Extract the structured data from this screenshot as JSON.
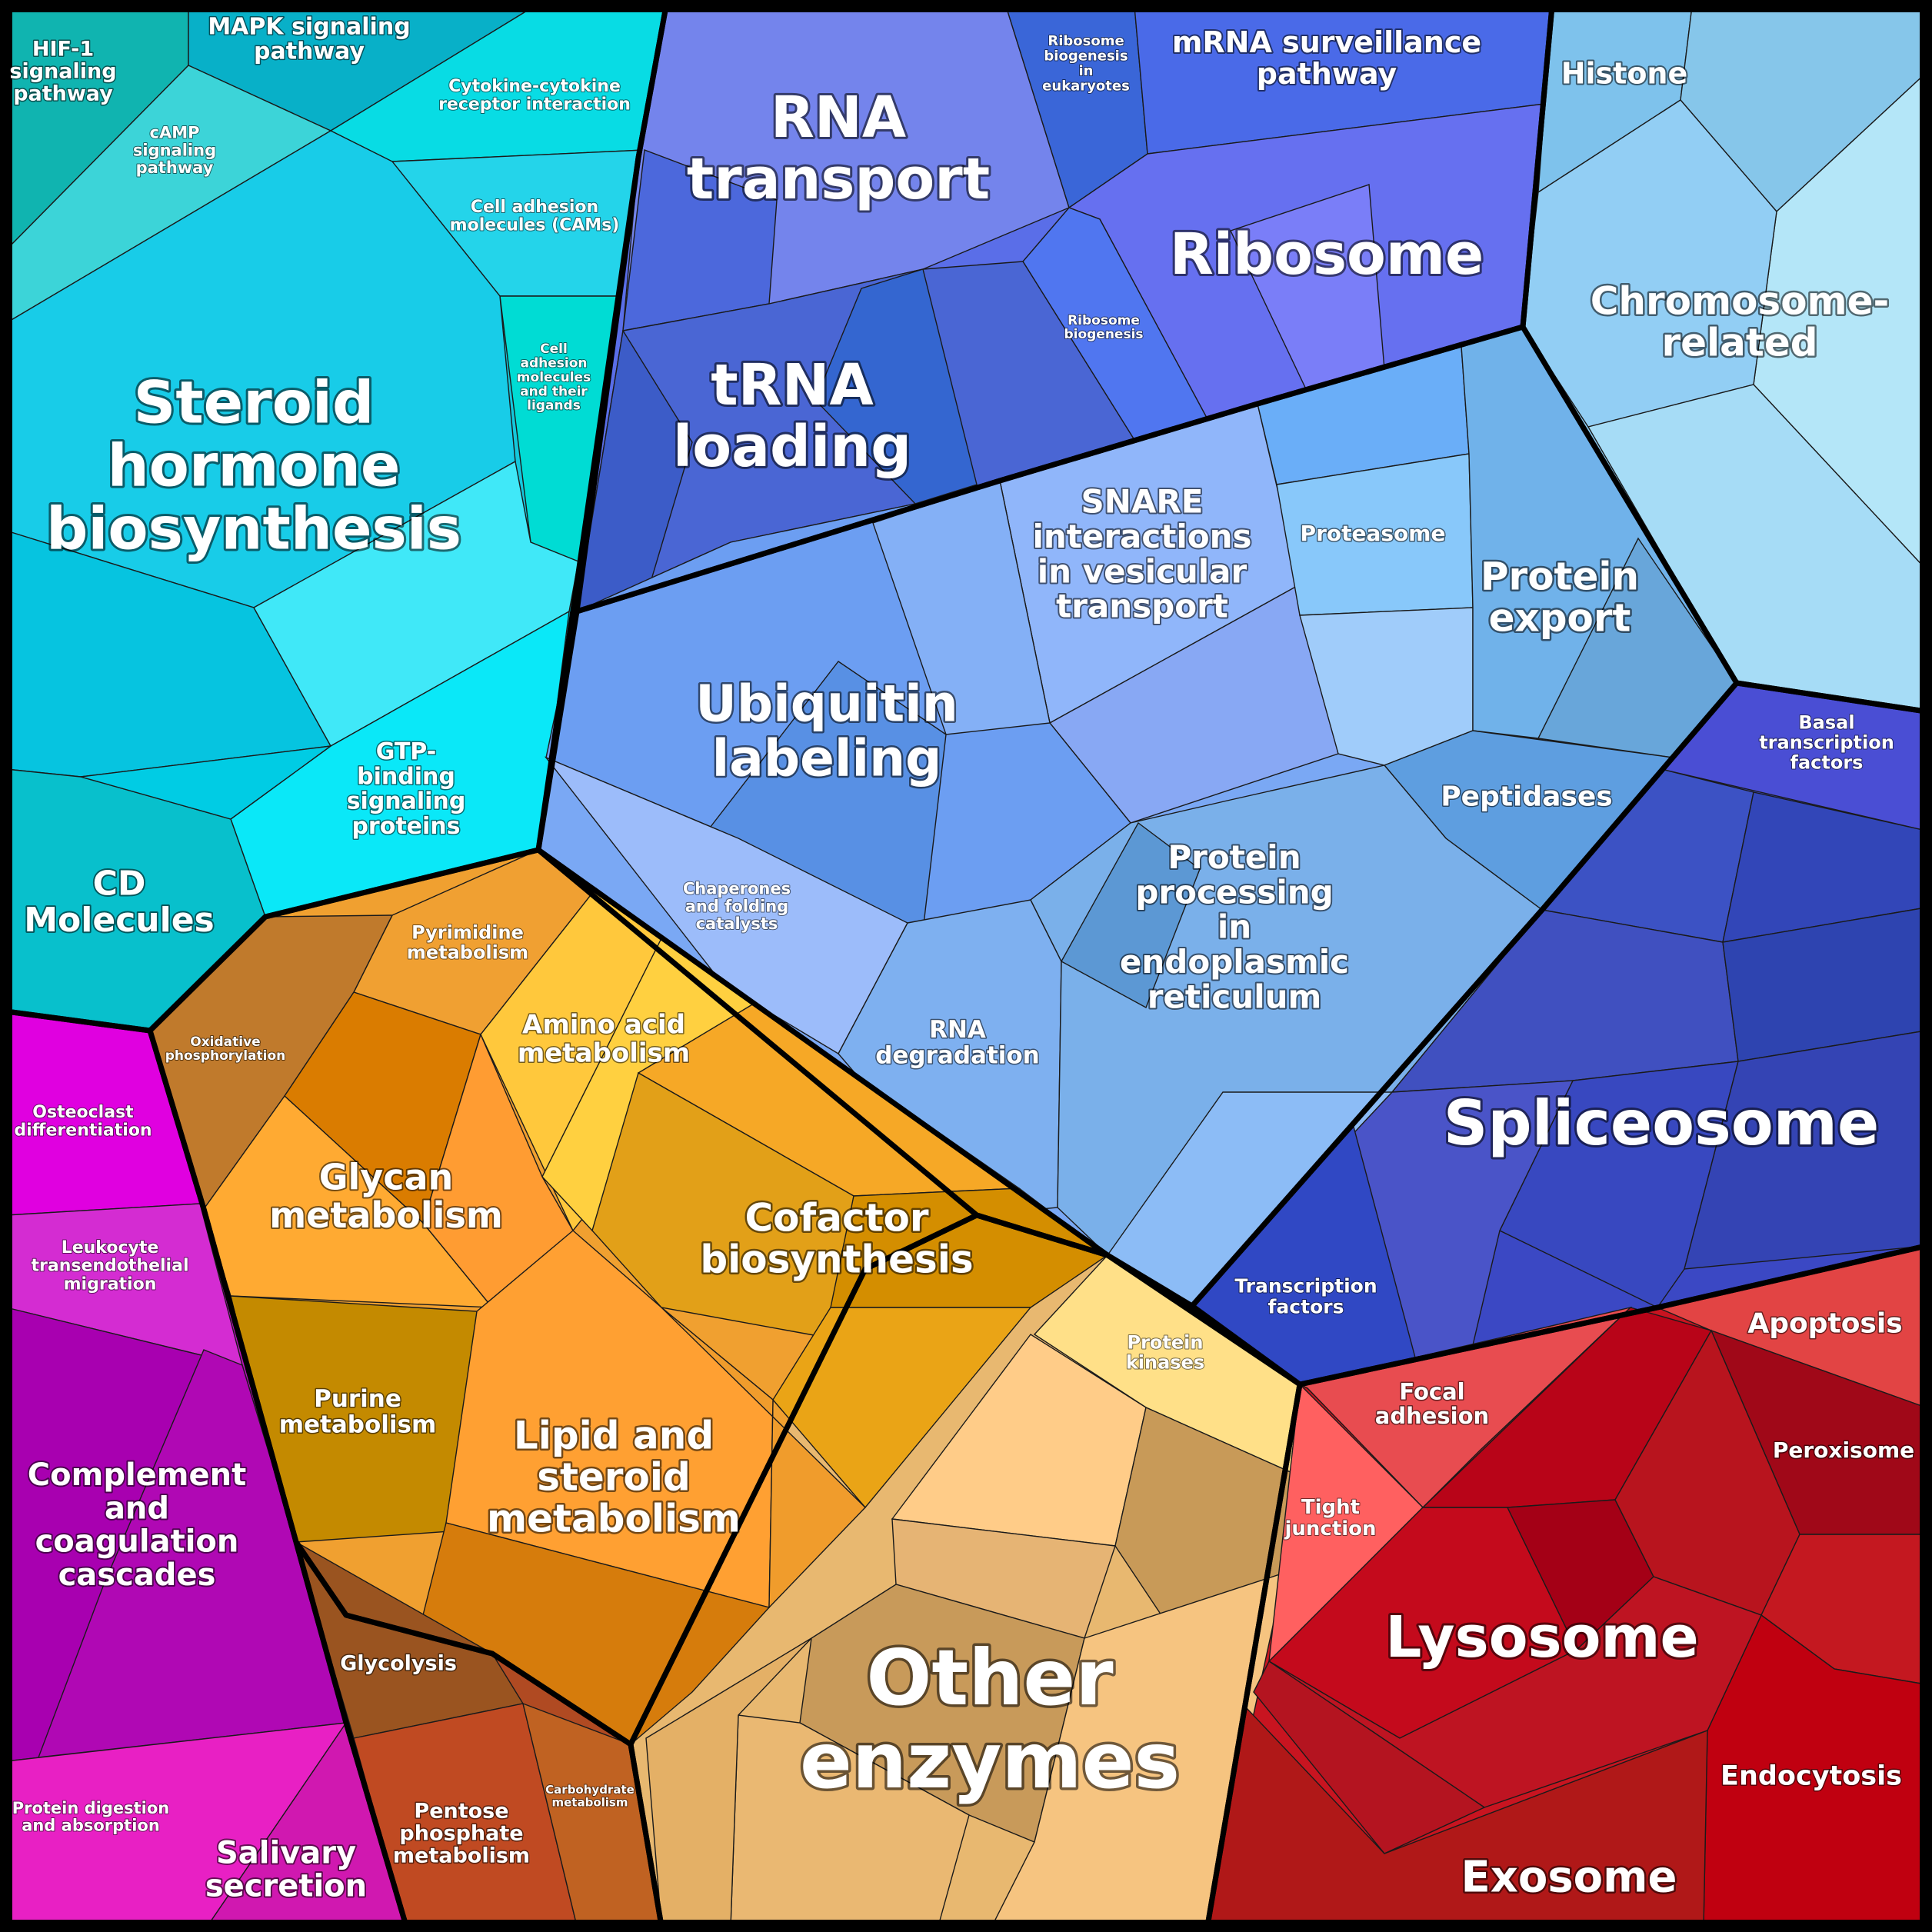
{
  "diagram": {
    "type": "voronoi-treemap",
    "regions": [
      {
        "id": "steroid",
        "color": "#14c8dc"
      },
      {
        "id": "rna",
        "color": "#5a6ee8"
      },
      {
        "id": "chromosome",
        "color": "#8ccaf0"
      },
      {
        "id": "protein",
        "color": "#7aa8f4"
      },
      {
        "id": "splice",
        "color": "#3b48c4"
      },
      {
        "id": "orange",
        "color": "#f0a030"
      },
      {
        "id": "magenta",
        "color": "#b612b8"
      },
      {
        "id": "brown",
        "color": "#b04a22"
      },
      {
        "id": "other",
        "color": "#e8b870"
      },
      {
        "id": "red",
        "color": "#c81420"
      }
    ],
    "labels": {
      "hif1": "HIF-1\nsignaling\npathway",
      "mapk": "MAPK signaling\npathway",
      "camp": "cAMP\nsignaling\npathway",
      "cytokine": "Cytokine-cytokine\nreceptor interaction",
      "cams": "Cell adhesion\nmolecules (CAMs)",
      "cell_adh_lig": "Cell\nadhesion\nmolecules\nand their\nligands",
      "steroid": "Steroid\nhormone\nbiosynthesis",
      "gtp": "GTP-\nbinding\nsignaling\nproteins",
      "cd": "CD\nMolecules",
      "rna_transport": "RNA\ntransport",
      "ribo_euk": "Ribosome\nbiogenesis\nin\neukaryotes",
      "mrna": "mRNA surveillance\npathway",
      "ribosome": "Ribosome",
      "ribo_bio": "Ribosome\nbiogenesis",
      "trna": "tRNA\nloading",
      "histone": "Histone",
      "chromosome": "Chromosome-\nrelated",
      "snare": "SNARE\ninteractions\nin vesicular\ntransport",
      "proteasome": "Proteasome",
      "protein_export": "Protein\nexport",
      "ubiquitin": "Ubiquitin\nlabeling",
      "peptidases": "Peptidases",
      "basal": "Basal\ntranscription\nfactors",
      "chaperones": "Chaperones\nand folding\ncatalysts",
      "protein_er": "Protein\nprocessing\nin\nendoplasmic\nreticulum",
      "rna_deg": "RNA\ndegradation",
      "spliceosome": "Spliceosome",
      "tf": "Transcription\nfactors",
      "pyrimidine": "Pyrimidine\nmetabolism",
      "oxphos": "Oxidative\nphosphorylation",
      "amino": "Amino acid\nmetabolism",
      "glycan": "Glycan\nmetabolism",
      "cofactor": "Cofactor\nbiosynthesis",
      "osteoclast": "Osteoclast\ndifferentiation",
      "leukocyte": "Leukocyte\ntransendothelial\nmigration",
      "purine": "Purine\nmetabolism",
      "lipid": "Lipid and\nsteroid\nmetabolism",
      "complement": "Complement\nand\ncoagulation\ncascades",
      "glycolysis": "Glycolysis",
      "protein_kinases": "Protein\nkinases",
      "focal": "Focal\nadhesion",
      "apoptosis": "Apoptosis",
      "peroxisome": "Peroxisome",
      "tight": "Tight\njunction",
      "lysosome": "Lysosome",
      "other": "Other\nenzymes",
      "endocytosis": "Endocytosis",
      "protein_digestion": "Protein digestion\nand absorption",
      "salivary": "Salivary\nsecretion",
      "pentose": "Pentose\nphosphate\nmetabolism",
      "carbohydrate": "Carbohydrate\nmetabolism",
      "exosome": "Exosome"
    }
  }
}
